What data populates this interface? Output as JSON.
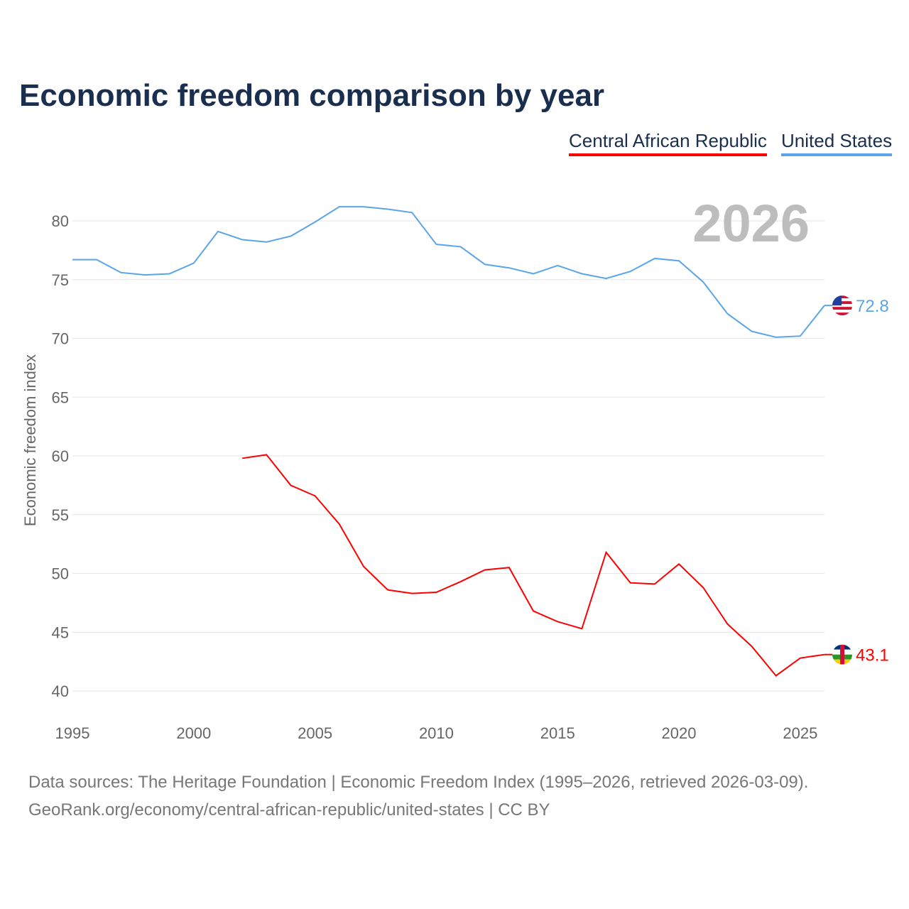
{
  "title": "Economic freedom comparison by year",
  "legend": [
    {
      "label": "Central African Republic",
      "color": "#ff0000"
    },
    {
      "label": "United States",
      "color": "#5aa5ea"
    }
  ],
  "year_label": "2026",
  "sources": {
    "line1": "Data sources: The Heritage Foundation | Economic Freedom Index (1995–2026, retrieved 2026-03-09).",
    "line2": "GeoRank.org/economy/central-african-republic/united-states | CC BY"
  },
  "chart_data": {
    "type": "line",
    "title": "Economic freedom comparison by year",
    "xlabel": "",
    "ylabel": "Economic freedom index",
    "xlim": [
      1995,
      2026
    ],
    "ylim": [
      40,
      82
    ],
    "xticks": [
      "1995",
      "2000",
      "2005",
      "2010",
      "2015",
      "2020",
      "2025"
    ],
    "yticks": [
      "40",
      "45",
      "50",
      "55",
      "60",
      "65",
      "70",
      "75",
      "80"
    ],
    "grid": true,
    "legend_position": "top-right",
    "series": [
      {
        "name": "United States",
        "color": "#5aa5ea",
        "end_label": "72.8",
        "x": [
          1995,
          1996,
          1997,
          1998,
          1999,
          2000,
          2001,
          2002,
          2003,
          2004,
          2005,
          2006,
          2007,
          2008,
          2009,
          2010,
          2011,
          2012,
          2013,
          2014,
          2015,
          2016,
          2017,
          2018,
          2019,
          2020,
          2021,
          2022,
          2023,
          2024,
          2025,
          2026
        ],
        "y": [
          76.7,
          76.7,
          75.6,
          75.4,
          75.5,
          76.4,
          79.1,
          78.4,
          78.2,
          78.7,
          79.9,
          81.2,
          81.2,
          81.0,
          80.7,
          78.0,
          77.8,
          76.3,
          76.0,
          75.5,
          76.2,
          75.5,
          75.1,
          75.7,
          76.8,
          76.6,
          74.8,
          72.1,
          70.6,
          70.1,
          70.2,
          72.8
        ]
      },
      {
        "name": "Central African Republic",
        "color": "#ff0000",
        "end_label": "43.1",
        "x": [
          2002,
          2003,
          2004,
          2005,
          2006,
          2007,
          2008,
          2009,
          2010,
          2011,
          2012,
          2013,
          2014,
          2015,
          2016,
          2017,
          2018,
          2019,
          2020,
          2021,
          2022,
          2023,
          2024,
          2025,
          2026
        ],
        "y": [
          59.8,
          60.1,
          57.5,
          56.6,
          54.2,
          50.6,
          48.6,
          48.3,
          48.4,
          49.3,
          50.3,
          50.5,
          46.8,
          45.9,
          45.3,
          51.8,
          49.2,
          49.1,
          50.8,
          48.8,
          45.7,
          43.8,
          41.3,
          42.8,
          43.1
        ]
      }
    ]
  }
}
